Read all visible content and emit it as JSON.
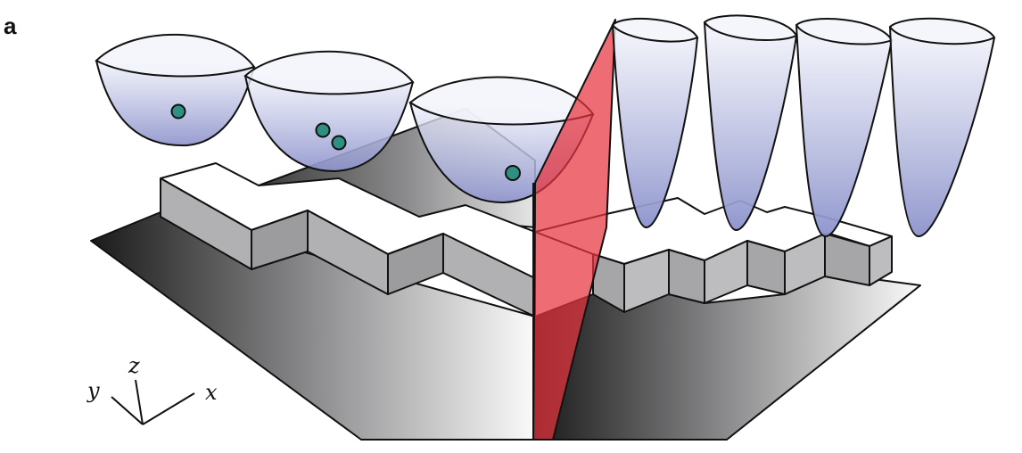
{
  "panel_label": "a",
  "axes": {
    "x": "x",
    "y": "y",
    "z": "z"
  },
  "colors": {
    "well_fill": "#9a9fd2",
    "particle": "#2f8f82",
    "barrier": "#e8333d",
    "block_side": "#a6a6a8",
    "block_top": "#ffffff"
  },
  "wells": {
    "wide_count": 3,
    "narrow_count": 4
  },
  "particles_per_well": [
    1,
    2,
    1
  ]
}
